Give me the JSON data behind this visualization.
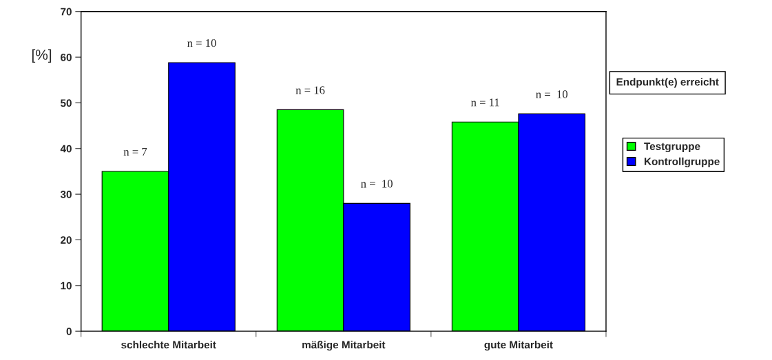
{
  "chart_data": {
    "type": "bar",
    "ylabel": "[%]",
    "legend_title": "Endpunkt(e) erreicht",
    "categories": [
      "schlechte Mitarbeit",
      "mäßige Mitarbeit",
      "gute Mitarbeit"
    ],
    "series": [
      {
        "name": "Testgruppe",
        "color": "#00ff00",
        "values": [
          35,
          48.5,
          45.8
        ]
      },
      {
        "name": "Kontrollgruppe",
        "color": "#0000ff",
        "values": [
          58.8,
          28,
          47.6
        ]
      }
    ],
    "annotations": [
      {
        "text": "n = 7",
        "x": "schlechte Mitarbeit",
        "y": 35
      },
      {
        "text": "n = 16",
        "x": "mäßige Mitarbeit",
        "y": 48.5
      },
      {
        "text": "n = 11",
        "x": "gute Mitarbeit",
        "y": 45.8
      },
      {
        "text": "n = 10",
        "x": "schlechte Mitarbeit",
        "y": 58.8
      },
      {
        "text": "n =  10",
        "x": "mäßige Mitarbeit",
        "y": 28
      },
      {
        "text": "n =  10",
        "x": "gute Mitarbeit",
        "y": 47.6
      }
    ],
    "ylim": [
      0,
      70
    ],
    "yticks": [
      0,
      10,
      20,
      30,
      40,
      50,
      60,
      70
    ],
    "grid": false,
    "legend": "right"
  }
}
